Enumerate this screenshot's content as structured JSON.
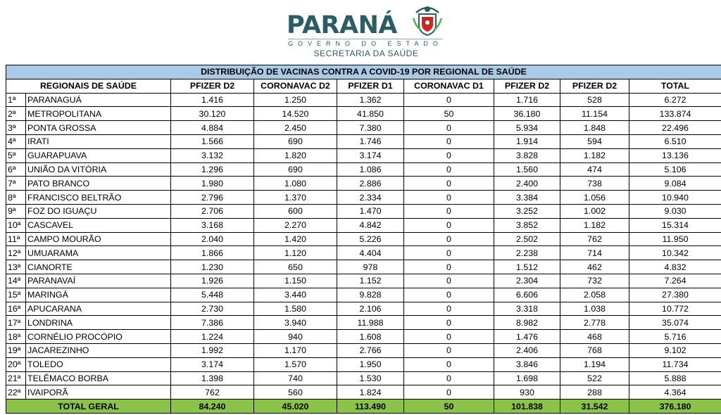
{
  "header": {
    "brand": "PARANÁ",
    "brand_sub": "GOVERNO DO ESTADO",
    "secretaria": "SECRETARIA DA SAÚDE"
  },
  "colors": {
    "title_bg": "#a9cbe8",
    "total_bg": "#8bc34a",
    "brand": "#2c5c64"
  },
  "table": {
    "title": "DISTRIBUIÇÃO DE VACINAS CONTRA A COVID-19 POR REGIONAL DE SAÚDE",
    "headers": [
      "REGIONAIS DE SAÚDE",
      "PFIZER D2",
      "CORONAVAC D2",
      "PFIZER D1",
      "CORONAVAC D1",
      "PFIZER D2",
      "PFIZER D2",
      "TOTAL"
    ],
    "rows": [
      [
        "1ª",
        "PARANAGUÁ",
        "1.416",
        "1.250",
        "1.362",
        "0",
        "1.716",
        "528",
        "6.272"
      ],
      [
        "2ª",
        "METROPOLITANA",
        "30.120",
        "14.520",
        "41.850",
        "50",
        "36.180",
        "11.154",
        "133.874"
      ],
      [
        "3ª",
        "PONTA GROSSA",
        "4.884",
        "2.450",
        "7.380",
        "0",
        "5.934",
        "1.848",
        "22.496"
      ],
      [
        "4ª",
        "IRATI",
        "1.566",
        "690",
        "1.746",
        "0",
        "1.914",
        "594",
        "6.510"
      ],
      [
        "5ª",
        "GUARAPUAVA",
        "3.132",
        "1.820",
        "3.174",
        "0",
        "3.828",
        "1.182",
        "13.136"
      ],
      [
        "6ª",
        "UNIÃO DA VITÓRIA",
        "1.296",
        "690",
        "1.086",
        "0",
        "1.560",
        "474",
        "5.106"
      ],
      [
        "7ª",
        "PATO BRANCO",
        "1.980",
        "1.080",
        "2.886",
        "0",
        "2.400",
        "738",
        "9.084"
      ],
      [
        "8ª",
        "FRANCISCO BELTRÃO",
        "2.796",
        "1.370",
        "2.334",
        "0",
        "3.384",
        "1.056",
        "10.940"
      ],
      [
        "9ª",
        "FOZ DO IGUAÇU",
        "2.706",
        "600",
        "1.470",
        "0",
        "3.252",
        "1.002",
        "9.030"
      ],
      [
        "10ª",
        "CASCAVEL",
        "3.168",
        "2.270",
        "4.842",
        "0",
        "3.852",
        "1.182",
        "15.314"
      ],
      [
        "11ª",
        "CAMPO MOURÃO",
        "2.040",
        "1.420",
        "5.226",
        "0",
        "2.502",
        "762",
        "11.950"
      ],
      [
        "12ª",
        "UMUARAMA",
        "1.866",
        "1.120",
        "4.404",
        "0",
        "2.238",
        "714",
        "10.342"
      ],
      [
        "13ª",
        "CIANORTE",
        "1.230",
        "650",
        "978",
        "0",
        "1.512",
        "462",
        "4.832"
      ],
      [
        "14ª",
        "PARANAVAÍ",
        "1.926",
        "1.150",
        "1.152",
        "0",
        "2.304",
        "732",
        "7.264"
      ],
      [
        "15ª",
        "MARINGÁ",
        "5.448",
        "3.440",
        "9.828",
        "0",
        "6.606",
        "2.058",
        "27.380"
      ],
      [
        "16ª",
        "APUCARANA",
        "2.730",
        "1.580",
        "2.106",
        "0",
        "3.318",
        "1.038",
        "10.772"
      ],
      [
        "17ª",
        "LONDRINA",
        "7.386",
        "3.940",
        "11.988",
        "0",
        "8.982",
        "2.778",
        "35.074"
      ],
      [
        "18ª",
        "CORNÉLIO PROCÓPIO",
        "1.224",
        "940",
        "1.608",
        "0",
        "1.476",
        "468",
        "5.716"
      ],
      [
        "19ª",
        "JACAREZINHO",
        "1.992",
        "1.170",
        "2.766",
        "0",
        "2.406",
        "768",
        "9.102"
      ],
      [
        "20ª",
        "TOLEDO",
        "3.174",
        "1.570",
        "1.950",
        "0",
        "3.846",
        "1.194",
        "11.734"
      ],
      [
        "21ª",
        "TELÊMACO BORBA",
        "1.398",
        "740",
        "1.530",
        "0",
        "1.698",
        "522",
        "5.888"
      ],
      [
        "22ª",
        "IVAIPORÃ",
        "762",
        "560",
        "1.824",
        "0",
        "930",
        "288",
        "4.364"
      ]
    ],
    "total": [
      "TOTAL GERAL",
      "84.240",
      "45.020",
      "113.490",
      "50",
      "101.838",
      "31.542",
      "376.180"
    ]
  }
}
